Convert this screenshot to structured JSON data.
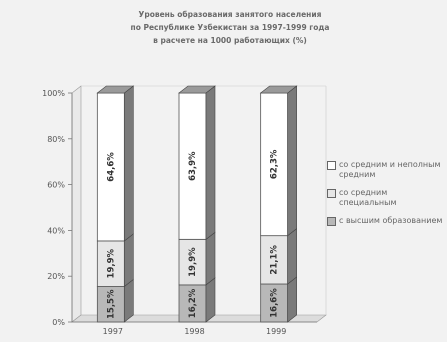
{
  "title_lines": [
    "Уровень образования занятого населения",
    "по Республике Узбекистан за 1997-1999 года",
    "в расчете на 1000 работающих (%)"
  ],
  "chart_data": {
    "type": "bar",
    "stacked": true,
    "categories": [
      "1997",
      "1998",
      "1999"
    ],
    "series": [
      {
        "name": "с высшим образованием",
        "values": [
          15.5,
          16.2,
          16.6
        ],
        "labels": [
          "15,5",
          "16,2",
          "16,6"
        ],
        "color": "#b8b8b8"
      },
      {
        "name": "со средним специальным",
        "values": [
          19.9,
          19.9,
          21.1
        ],
        "labels": [
          "19,9",
          "19,9",
          "21,1"
        ],
        "color": "#e6e6e6"
      },
      {
        "name": "со средним и неполным средним",
        "values": [
          64.6,
          63.9,
          62.3
        ],
        "labels": [
          "64,6",
          "63,9",
          "62,3"
        ],
        "color": "#ffffff"
      }
    ],
    "yticks": [
      "0%",
      "20%",
      "40%",
      "60%",
      "80%",
      "100%"
    ],
    "ylim": [
      0,
      100
    ],
    "grid": false,
    "legend_position": "right"
  },
  "legend_order": [
    2,
    1,
    0
  ]
}
